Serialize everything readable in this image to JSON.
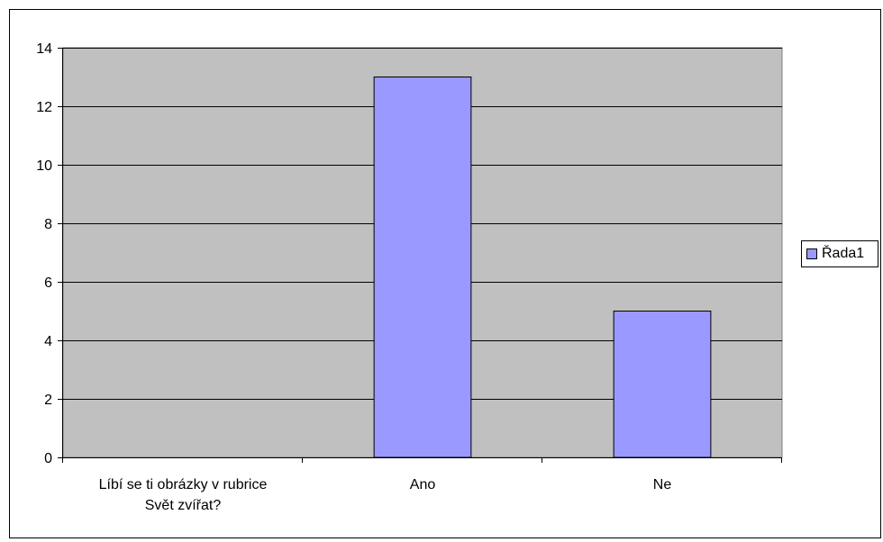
{
  "chart_data": {
    "type": "bar",
    "categories": [
      "Líbí se ti obrázky v rubrice Svět zvířat?",
      "Ano",
      "Ne"
    ],
    "category_lines": [
      [
        "Líbí se ti obrázky v rubrice",
        "Svět zvířat?"
      ],
      [
        "Ano"
      ],
      [
        "Ne"
      ]
    ],
    "series": [
      {
        "name": "Řada1",
        "values": [
          null,
          13,
          5
        ],
        "color": "#9999ff"
      }
    ],
    "title": "",
    "xlabel": "",
    "ylabel": "",
    "ylim": [
      0,
      14
    ],
    "yticks": [
      0,
      2,
      4,
      6,
      8,
      10,
      12,
      14
    ],
    "grid": true,
    "plot_background": "#c0c0c0",
    "legend": {
      "position": "right",
      "entries": [
        "Řada1"
      ]
    }
  }
}
